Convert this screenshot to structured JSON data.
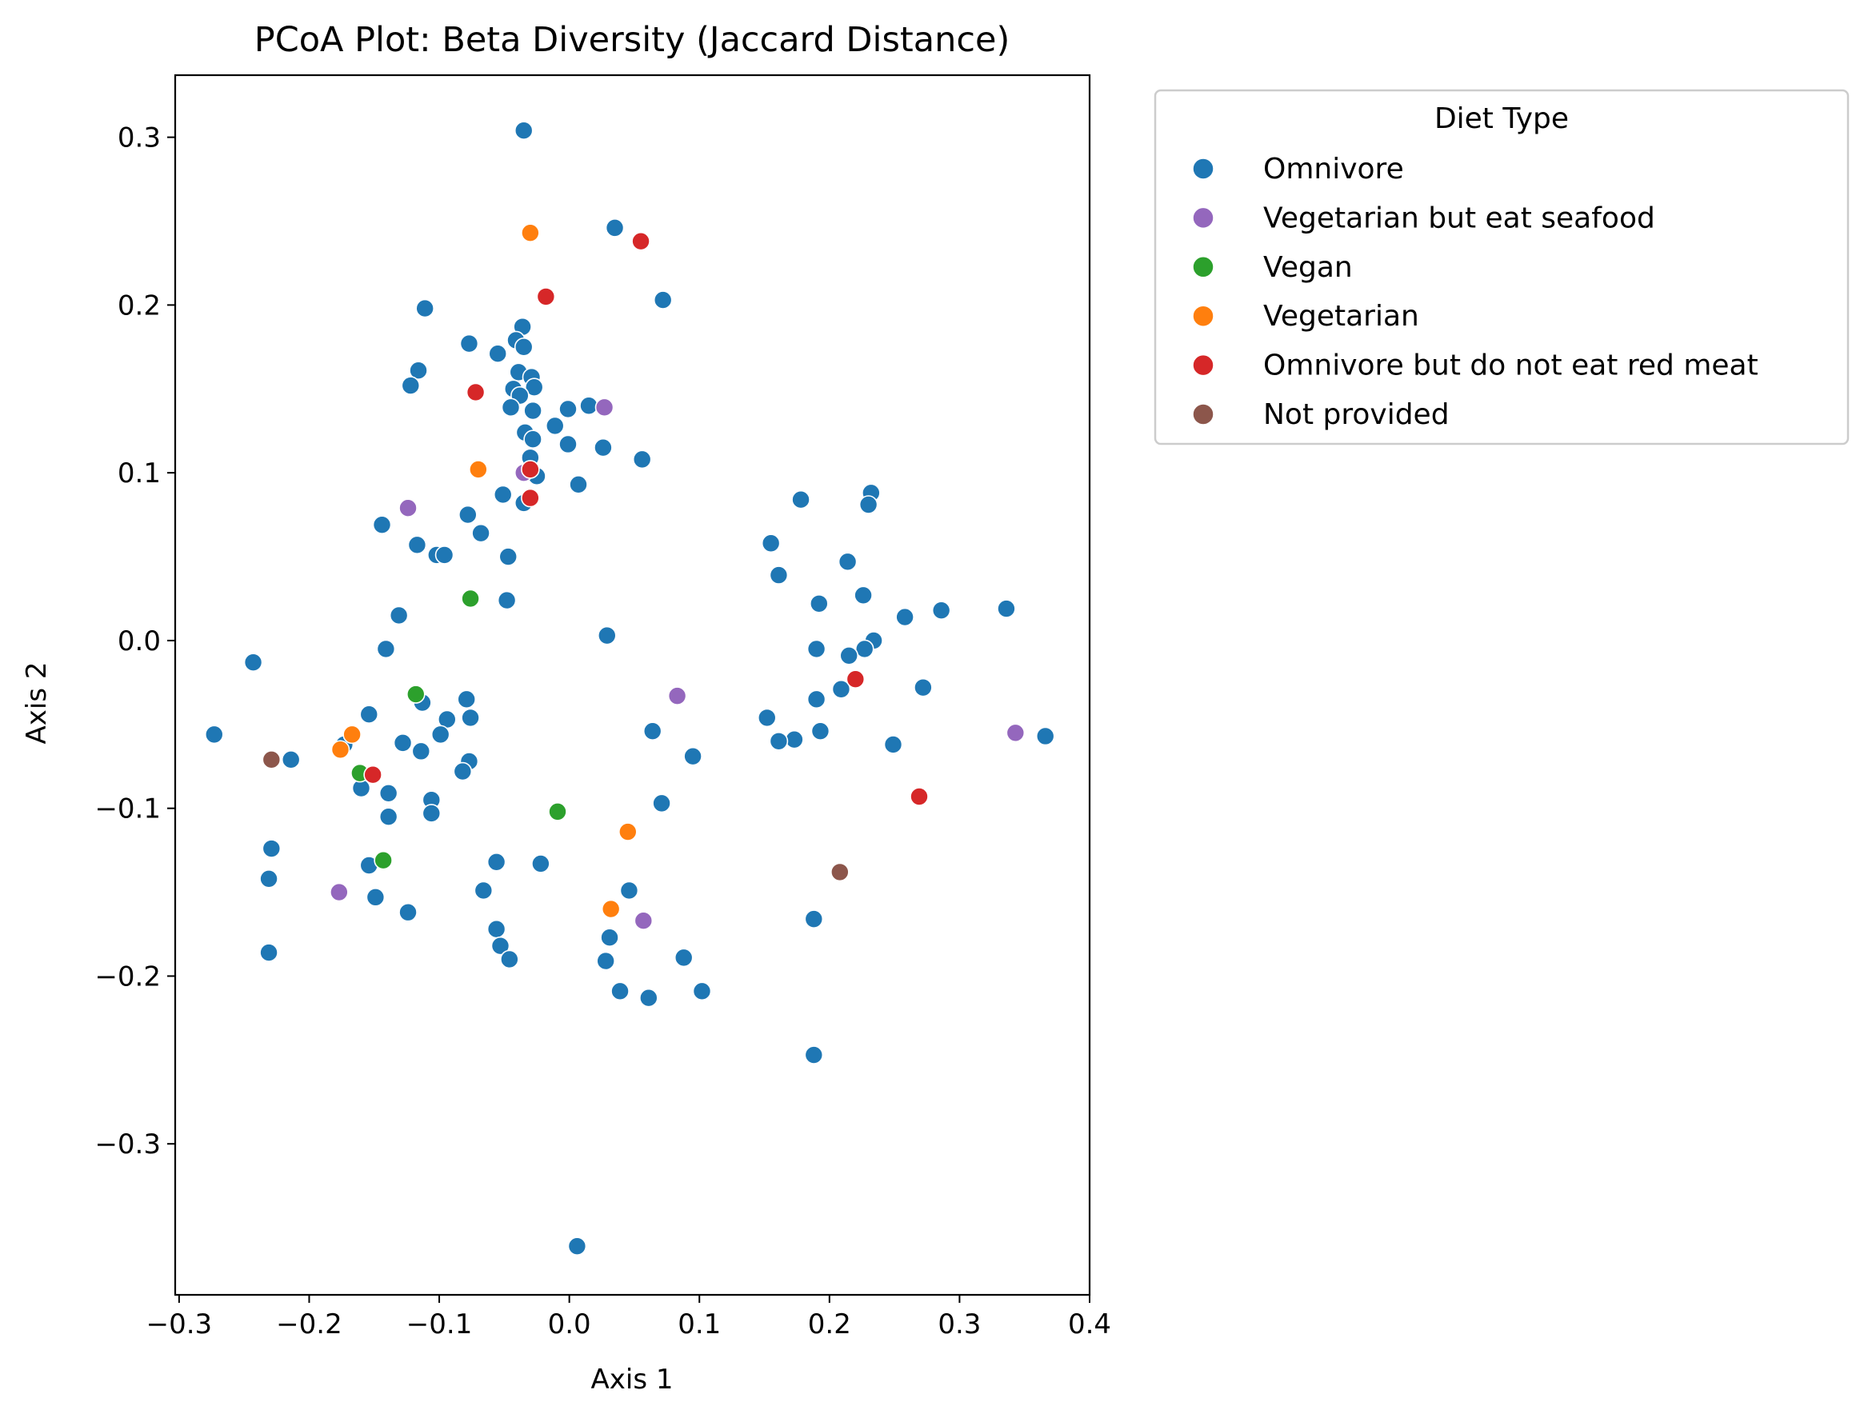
{
  "chart_data": {
    "type": "scatter",
    "title": "PCoA Plot: Beta Diversity (Jaccard Distance)",
    "xlabel": "Axis 1",
    "ylabel": "Axis 2",
    "xlim": [
      -0.303,
      0.4
    ],
    "ylim": [
      -0.39,
      0.337
    ],
    "x_ticks": [
      -0.3,
      -0.2,
      -0.1,
      0.0,
      0.1,
      0.2,
      0.3,
      0.4
    ],
    "x_tick_labels": [
      "−0.3",
      "−0.2",
      "−0.1",
      "0.0",
      "0.1",
      "0.2",
      "0.3",
      "0.4"
    ],
    "y_ticks": [
      0.3,
      0.2,
      0.1,
      0.0,
      -0.1,
      -0.2,
      -0.3
    ],
    "y_tick_labels": [
      "0.3",
      "0.2",
      "0.1",
      "0.0",
      "−0.1",
      "−0.2",
      "−0.3"
    ],
    "grid": false,
    "legend": {
      "title": "Diet Type",
      "position": "outside-right"
    },
    "series": [
      {
        "name": "Omnivore",
        "color": "#1f77b4",
        "points": [
          [
            -0.035,
            0.304
          ],
          [
            0.035,
            0.246
          ],
          [
            0.072,
            0.203
          ],
          [
            -0.111,
            0.198
          ],
          [
            -0.036,
            0.187
          ],
          [
            -0.041,
            0.179
          ],
          [
            -0.077,
            0.177
          ],
          [
            -0.035,
            0.175
          ],
          [
            -0.055,
            0.171
          ],
          [
            -0.116,
            0.161
          ],
          [
            -0.039,
            0.16
          ],
          [
            -0.029,
            0.157
          ],
          [
            -0.122,
            0.152
          ],
          [
            -0.027,
            0.151
          ],
          [
            -0.043,
            0.15
          ],
          [
            -0.038,
            0.146
          ],
          [
            -0.045,
            0.139
          ],
          [
            -0.028,
            0.137
          ],
          [
            -0.001,
            0.138
          ],
          [
            0.015,
            0.14
          ],
          [
            -0.011,
            0.128
          ],
          [
            -0.034,
            0.124
          ],
          [
            -0.028,
            0.12
          ],
          [
            -0.001,
            0.117
          ],
          [
            0.026,
            0.115
          ],
          [
            0.056,
            0.108
          ],
          [
            -0.03,
            0.109
          ],
          [
            -0.025,
            0.098
          ],
          [
            0.007,
            0.093
          ],
          [
            -0.051,
            0.087
          ],
          [
            -0.035,
            0.082
          ],
          [
            -0.144,
            0.069
          ],
          [
            -0.078,
            0.075
          ],
          [
            -0.068,
            0.064
          ],
          [
            -0.117,
            0.057
          ],
          [
            -0.102,
            0.051
          ],
          [
            -0.096,
            0.051
          ],
          [
            -0.047,
            0.05
          ],
          [
            -0.048,
            0.024
          ],
          [
            -0.131,
            0.015
          ],
          [
            0.029,
            0.003
          ],
          [
            -0.141,
            -0.005
          ],
          [
            -0.243,
            -0.013
          ],
          [
            -0.079,
            -0.035
          ],
          [
            -0.113,
            -0.037
          ],
          [
            -0.154,
            -0.044
          ],
          [
            -0.076,
            -0.046
          ],
          [
            -0.094,
            -0.047
          ],
          [
            -0.273,
            -0.056
          ],
          [
            -0.099,
            -0.056
          ],
          [
            -0.128,
            -0.061
          ],
          [
            -0.173,
            -0.062
          ],
          [
            -0.114,
            -0.066
          ],
          [
            -0.214,
            -0.071
          ],
          [
            -0.077,
            -0.072
          ],
          [
            -0.082,
            -0.078
          ],
          [
            -0.16,
            -0.088
          ],
          [
            -0.139,
            -0.091
          ],
          [
            -0.106,
            -0.095
          ],
          [
            -0.106,
            -0.103
          ],
          [
            -0.139,
            -0.105
          ],
          [
            -0.229,
            -0.124
          ],
          [
            -0.056,
            -0.132
          ],
          [
            -0.022,
            -0.133
          ],
          [
            -0.154,
            -0.134
          ],
          [
            -0.231,
            -0.142
          ],
          [
            -0.066,
            -0.149
          ],
          [
            -0.149,
            -0.153
          ],
          [
            -0.124,
            -0.162
          ],
          [
            -0.056,
            -0.172
          ],
          [
            -0.053,
            -0.182
          ],
          [
            -0.231,
            -0.186
          ],
          [
            -0.046,
            -0.19
          ],
          [
            0.064,
            -0.054
          ],
          [
            0.095,
            -0.069
          ],
          [
            0.071,
            -0.097
          ],
          [
            0.046,
            -0.149
          ],
          [
            0.031,
            -0.177
          ],
          [
            0.028,
            -0.191
          ],
          [
            0.088,
            -0.189
          ],
          [
            0.039,
            -0.209
          ],
          [
            0.061,
            -0.213
          ],
          [
            0.102,
            -0.209
          ],
          [
            0.006,
            -0.361
          ],
          [
            0.178,
            0.084
          ],
          [
            0.232,
            0.088
          ],
          [
            0.23,
            0.081
          ],
          [
            0.155,
            0.058
          ],
          [
            0.214,
            0.047
          ],
          [
            0.161,
            0.039
          ],
          [
            0.192,
            0.022
          ],
          [
            0.226,
            0.027
          ],
          [
            0.258,
            0.014
          ],
          [
            0.286,
            0.018
          ],
          [
            0.336,
            0.019
          ],
          [
            0.234,
            0.0
          ],
          [
            0.227,
            -0.005
          ],
          [
            0.19,
            -0.005
          ],
          [
            0.215,
            -0.009
          ],
          [
            0.272,
            -0.028
          ],
          [
            0.209,
            -0.029
          ],
          [
            0.19,
            -0.035
          ],
          [
            0.152,
            -0.046
          ],
          [
            0.193,
            -0.054
          ],
          [
            0.173,
            -0.059
          ],
          [
            0.161,
            -0.06
          ],
          [
            0.249,
            -0.062
          ],
          [
            0.366,
            -0.057
          ],
          [
            0.188,
            -0.166
          ],
          [
            0.188,
            -0.247
          ]
        ]
      },
      {
        "name": "Vegetarian but eat seafood",
        "color": "#9467bd",
        "points": [
          [
            0.027,
            0.139
          ],
          [
            -0.035,
            0.1
          ],
          [
            -0.124,
            0.079
          ],
          [
            0.083,
            -0.033
          ],
          [
            0.343,
            -0.055
          ],
          [
            -0.177,
            -0.15
          ],
          [
            0.057,
            -0.167
          ]
        ]
      },
      {
        "name": "Vegan",
        "color": "#2ca02c",
        "points": [
          [
            -0.076,
            0.025
          ],
          [
            -0.118,
            -0.032
          ],
          [
            -0.161,
            -0.079
          ],
          [
            -0.143,
            -0.131
          ],
          [
            -0.009,
            -0.102
          ]
        ]
      },
      {
        "name": "Vegetarian",
        "color": "#ff7f0e",
        "points": [
          [
            -0.03,
            0.243
          ],
          [
            -0.07,
            0.102
          ],
          [
            -0.167,
            -0.056
          ],
          [
            -0.176,
            -0.065
          ],
          [
            0.045,
            -0.114
          ],
          [
            0.032,
            -0.16
          ]
        ]
      },
      {
        "name": "Omnivore but do not eat red meat",
        "color": "#d62728",
        "points": [
          [
            0.055,
            0.238
          ],
          [
            -0.018,
            0.205
          ],
          [
            -0.072,
            0.148
          ],
          [
            -0.03,
            0.102
          ],
          [
            -0.03,
            0.085
          ],
          [
            -0.151,
            -0.08
          ],
          [
            0.22,
            -0.023
          ],
          [
            0.269,
            -0.093
          ]
        ]
      },
      {
        "name": "Not provided",
        "color": "#8c564b",
        "points": [
          [
            -0.229,
            -0.071
          ],
          [
            0.208,
            -0.138
          ]
        ]
      }
    ]
  }
}
